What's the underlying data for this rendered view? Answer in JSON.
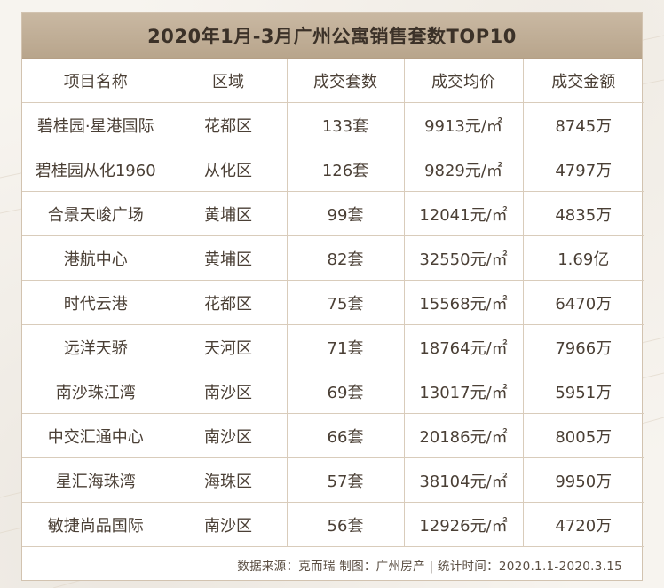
{
  "title": "2020年1月-3月广州公寓销售套数TOP10",
  "headers": [
    "项目名称",
    "区域",
    "成交套数",
    "成交均价",
    "成交金额"
  ],
  "rows": [
    [
      "碧桂园·星港国际",
      "花都区",
      "133套",
      "9913元/㎡",
      "8745万"
    ],
    [
      "碧桂园从化1960",
      "从化区",
      "126套",
      "9829元/㎡",
      "4797万"
    ],
    [
      "合景天峻广场",
      "黄埔区",
      "99套",
      "12041元/㎡",
      "4835万"
    ],
    [
      "港航中心",
      "黄埔区",
      "82套",
      "32550元/㎡",
      "1.69亿"
    ],
    [
      "时代云港",
      "花都区",
      "75套",
      "15568元/㎡",
      "6470万"
    ],
    [
      "远洋天骄",
      "天河区",
      "71套",
      "18764元/㎡",
      "7966万"
    ],
    [
      "南沙珠江湾",
      "南沙区",
      "69套",
      "13017元/㎡",
      "5951万"
    ],
    [
      "中交汇通中心",
      "南沙区",
      "66套",
      "20186元/㎡",
      "8005万"
    ],
    [
      "星汇海珠湾",
      "海珠区",
      "57套",
      "38104元/㎡",
      "9950万"
    ],
    [
      "敏捷尚品国际",
      "南沙区",
      "56套",
      "12926元/㎡",
      "4720万"
    ]
  ],
  "footer": "数据来源：克而瑞 制图：广州房产 | 统计时间：2020.1.1-2020.3.15",
  "colors": {
    "title_bar": "#c0ae96",
    "border": "#d9ccbb",
    "text": "#4a3f35",
    "background": "#f7f4ef"
  }
}
